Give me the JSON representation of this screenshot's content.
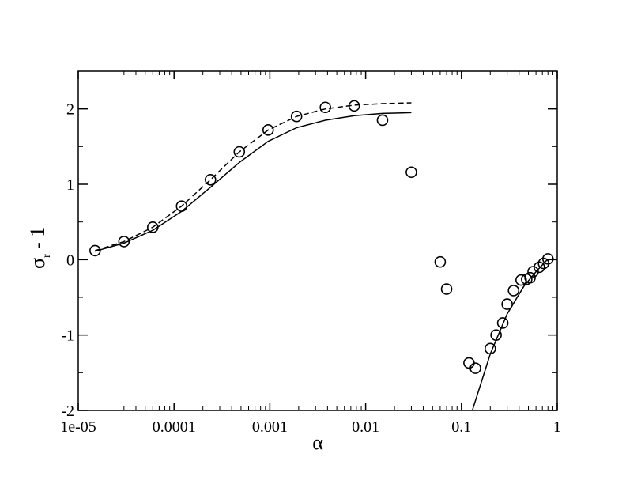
{
  "chart_data": {
    "type": "scatter",
    "title": "",
    "xlabel": "α",
    "ylabel_main": "σ",
    "ylabel_sub": "r",
    "ylabel_suffix": " - 1",
    "xscale": "log",
    "xlim": [
      1e-05,
      1
    ],
    "ylim": [
      -2,
      2.5
    ],
    "x_ticks": [
      {
        "value": 1e-05,
        "label": "1e-05"
      },
      {
        "value": 0.0001,
        "label": "0.0001"
      },
      {
        "value": 0.001,
        "label": "0.001"
      },
      {
        "value": 0.01,
        "label": "0.01"
      },
      {
        "value": 0.1,
        "label": "0.1"
      },
      {
        "value": 1,
        "label": "1"
      }
    ],
    "y_ticks": [
      {
        "value": -2,
        "label": "-2"
      },
      {
        "value": -1,
        "label": "-1"
      },
      {
        "value": 0,
        "label": "0"
      },
      {
        "value": 1,
        "label": "1"
      },
      {
        "value": 2,
        "label": "2"
      }
    ],
    "grid": false,
    "series": [
      {
        "style": "circle-markers",
        "x": [
          1.5e-05,
          3e-05,
          6e-05,
          0.00012,
          0.00024,
          0.00048,
          0.00096,
          0.0019,
          0.0038,
          0.0076,
          0.015,
          0.03,
          0.06,
          0.07,
          0.12,
          0.14,
          0.2,
          0.23,
          0.27,
          0.3,
          0.35,
          0.42,
          0.48,
          0.52,
          0.56,
          0.65,
          0.72,
          0.8
        ],
        "y": [
          0.12,
          0.24,
          0.43,
          0.71,
          1.06,
          1.43,
          1.72,
          1.9,
          2.02,
          2.04,
          1.85,
          1.16,
          -0.03,
          -0.39,
          -1.37,
          -1.44,
          -1.18,
          -1.0,
          -0.84,
          -0.59,
          -0.41,
          -0.27,
          -0.26,
          -0.24,
          -0.16,
          -0.1,
          -0.05,
          0.01
        ]
      },
      {
        "style": "solid-line",
        "x": [
          1.5e-05,
          3e-05,
          6e-05,
          0.00012,
          0.00024,
          0.00048,
          0.00096,
          0.0019,
          0.0038,
          0.0076,
          0.015,
          0.03
        ],
        "y": [
          0.11,
          0.22,
          0.39,
          0.64,
          0.96,
          1.29,
          1.57,
          1.75,
          1.85,
          1.91,
          1.94,
          1.95
        ]
      },
      {
        "style": "dashed-line",
        "x": [
          1.5e-05,
          3e-05,
          6e-05,
          0.00012,
          0.00024,
          0.00048,
          0.00096,
          0.0019,
          0.0038,
          0.0076,
          0.015,
          0.03
        ],
        "y": [
          0.12,
          0.24,
          0.43,
          0.71,
          1.06,
          1.43,
          1.72,
          1.9,
          2.0,
          2.05,
          2.07,
          2.08
        ]
      },
      {
        "style": "solid-line",
        "x": [
          0.13,
          0.2,
          0.3,
          0.45,
          0.6,
          0.8
        ],
        "y": [
          -2.0,
          -1.25,
          -0.72,
          -0.35,
          -0.16,
          0.01
        ]
      }
    ]
  }
}
